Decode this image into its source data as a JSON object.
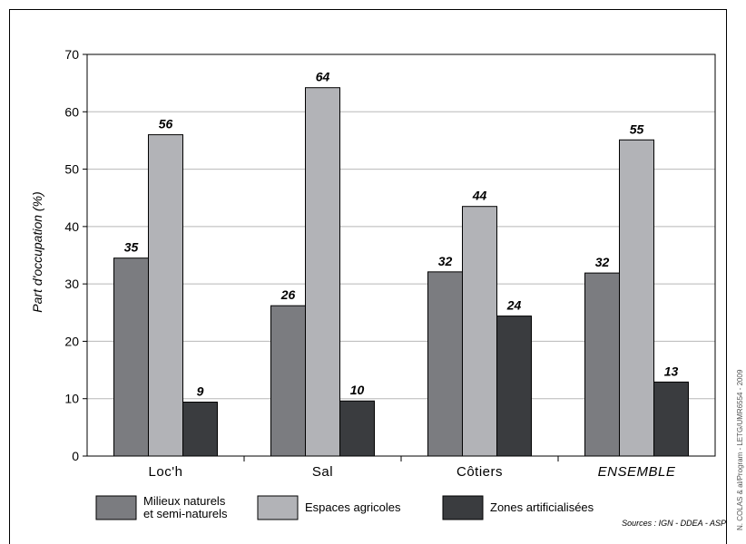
{
  "chart_data": {
    "type": "bar",
    "title": "",
    "xlabel": "",
    "ylabel": "Part d'occupation (%)",
    "ylim": [
      0,
      70
    ],
    "yticks": [
      0,
      10,
      20,
      30,
      40,
      50,
      60,
      70
    ],
    "grid": true,
    "categories": [
      "Loc'h",
      "Sal",
      "Côtiers",
      "ENSEMBLE"
    ],
    "series": [
      {
        "name": "Milieux naturels\net semi-naturels",
        "color": "#7b7c80",
        "values": [
          34.5,
          26.2,
          32.1,
          31.9
        ],
        "labels": [
          "35",
          "26",
          "32",
          "32"
        ]
      },
      {
        "name": "Espaces agricoles",
        "color": "#b2b3b7",
        "values": [
          56.0,
          64.2,
          43.5,
          55.1
        ],
        "labels": [
          "56",
          "64",
          "44",
          "55"
        ]
      },
      {
        "name": "Zones artificialisées",
        "color": "#3a3c3f",
        "values": [
          9.4,
          9.6,
          24.4,
          12.9
        ],
        "labels": [
          "9",
          "10",
          "24",
          "13"
        ]
      }
    ],
    "legend_position": "bottom",
    "source": "Sources : IGN - DDEA - ASP",
    "side_note": "N. COLAS & al/Program - LETG/UMR6554 - 2009"
  }
}
